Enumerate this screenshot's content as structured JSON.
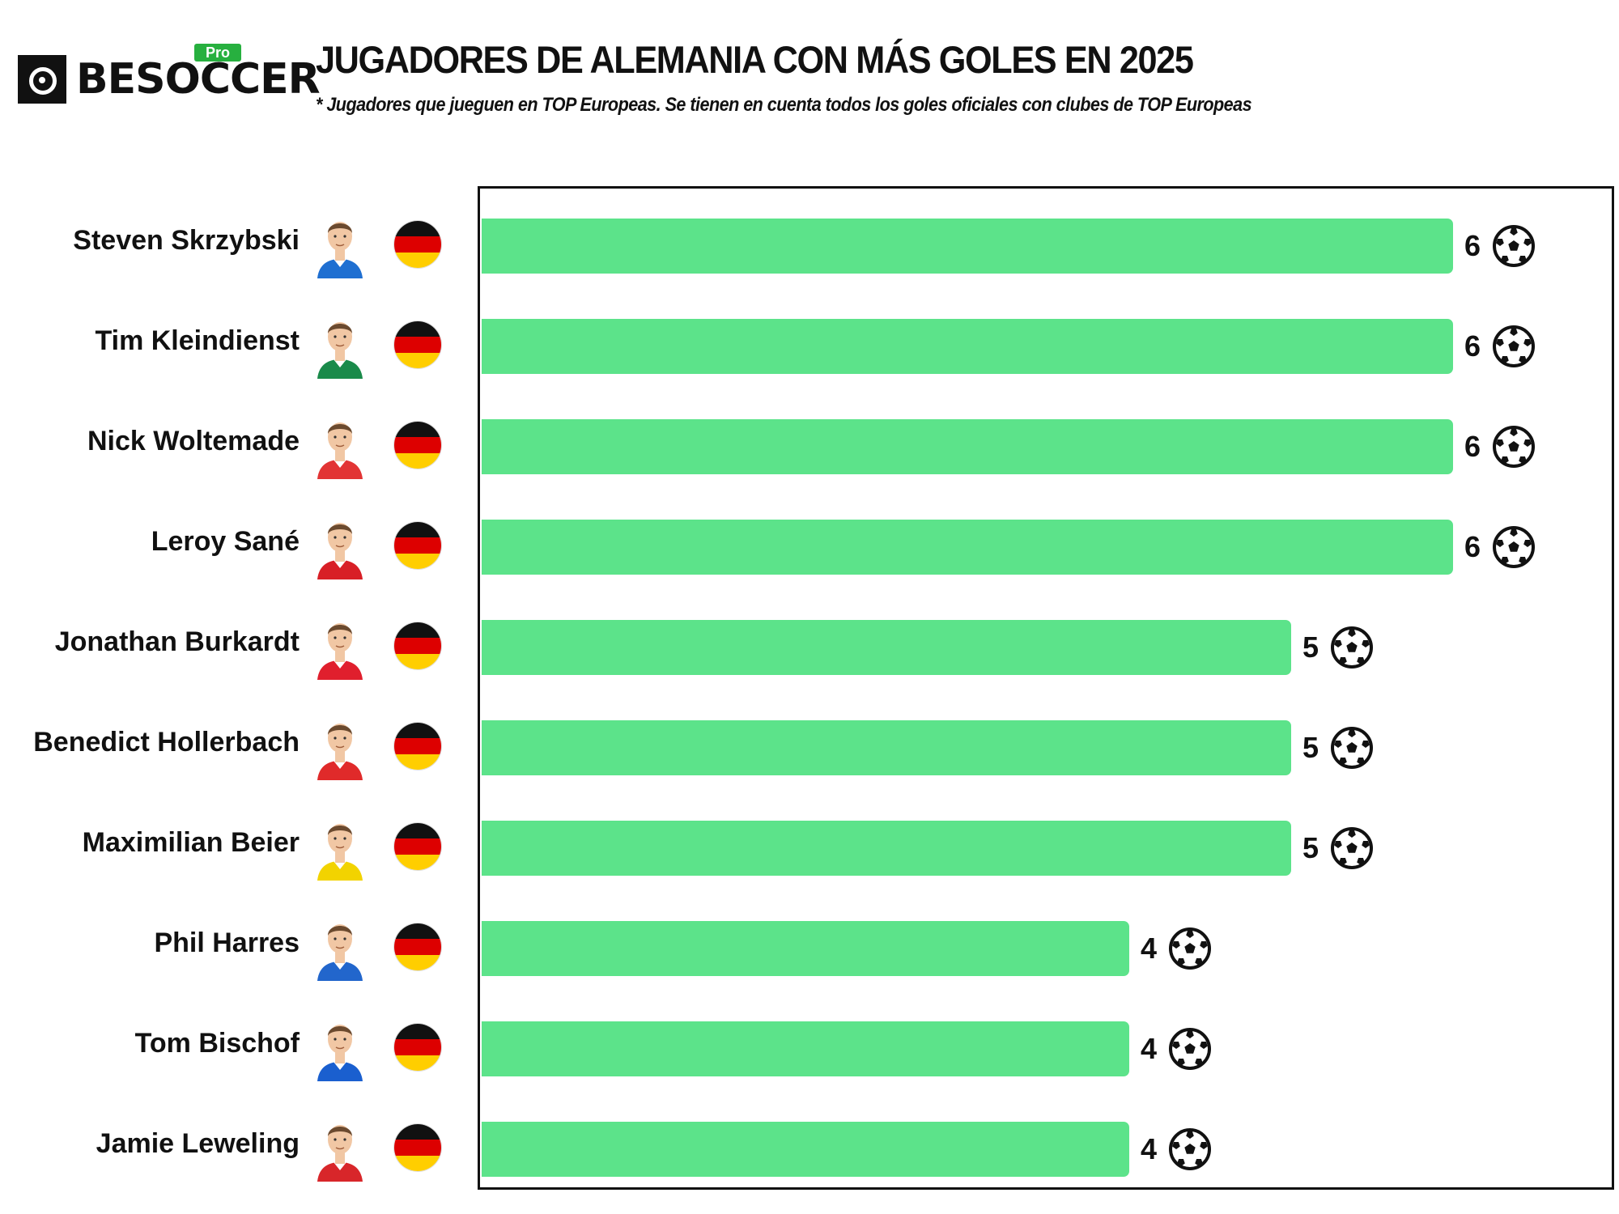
{
  "brand": {
    "name": "BESOCCER",
    "badge": "Pro"
  },
  "header": {
    "title": "JUGADORES DE ALEMANIA CON MÁS GOLES EN 2025",
    "subtitle": "* Jugadores que jueguen en TOP Europeas. Se tienen en cuenta todos los goles oficiales con clubes de TOP Europeas"
  },
  "colors": {
    "bar": "#5ce38a",
    "flag_black": "#111111",
    "flag_red": "#dd0000",
    "flag_gold": "#ffce00"
  },
  "chart_data": {
    "type": "bar",
    "orientation": "horizontal",
    "title": "JUGADORES DE ALEMANIA CON MÁS GOLES EN 2025",
    "xlabel": "",
    "ylabel": "",
    "xlim": [
      0,
      7.2
    ],
    "categories": [
      "Steven Skrzybski",
      "Tim Kleindienst",
      "Nick Woltemade",
      "Leroy Sané",
      "Jonathan Burkardt",
      "Benedict Hollerbach",
      "Maximilian Beier",
      "Phil Harres",
      "Tom Bischof",
      "Jamie Leweling"
    ],
    "values": [
      6,
      6,
      6,
      6,
      5,
      5,
      5,
      4,
      4,
      4
    ],
    "nationality": "Germany",
    "value_icon": "soccer-ball-icon",
    "player_kits": [
      "#1f6fd1",
      "#1a8a4a",
      "#e23434",
      "#d81f26",
      "#e01f2d",
      "#e02a2a",
      "#f2d300",
      "#2266cc",
      "#1a5fcf",
      "#d8262a"
    ]
  }
}
